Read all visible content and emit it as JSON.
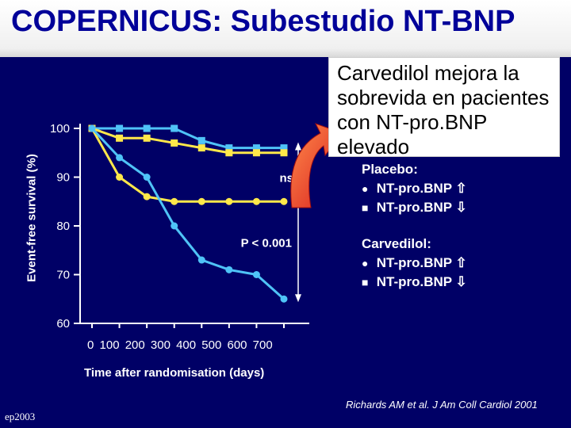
{
  "header": {
    "title": "COPERNICUS: Subestudio NT-BNP"
  },
  "callout": {
    "text": "Carvedilol mejora la sobrevida en pacientes con NT-pro.BNP elevado"
  },
  "chart_data": {
    "type": "line",
    "ylabel": "Event-free survival (%)",
    "xlabel": "Time after randomisation (days)",
    "x_tick_text": "0   100  200  300  400  500  600  700",
    "y_ticks": [
      "100",
      "90",
      "80",
      "70",
      "60"
    ],
    "ylim": [
      60,
      100
    ],
    "annotations": {
      "ns": "ns",
      "p_value": "P < 0.001"
    },
    "series": [
      {
        "group": "Carvedilol",
        "marker": "square",
        "color": "#4fc3f7",
        "x": [
          0,
          100,
          200,
          300,
          400,
          500,
          600,
          700
        ],
        "y": [
          100,
          100,
          100,
          100,
          97.5,
          96,
          96,
          96
        ]
      },
      {
        "group": "Carvedilol",
        "marker": "square",
        "color": "#ffe84a",
        "x": [
          0,
          100,
          200,
          300,
          400,
          500,
          600,
          700
        ],
        "y": [
          100,
          98,
          98,
          97,
          96,
          95,
          95,
          95
        ]
      },
      {
        "group": "Placebo",
        "marker": "circle",
        "color": "#ffe84a",
        "x": [
          0,
          100,
          200,
          300,
          400,
          500,
          600,
          700
        ],
        "y": [
          100,
          90,
          86,
          85,
          85,
          85,
          85,
          85
        ]
      },
      {
        "group": "Placebo",
        "marker": "circle",
        "color": "#4fc3f7",
        "x": [
          0,
          100,
          200,
          300,
          400,
          500,
          600,
          700
        ],
        "y": [
          100,
          94,
          90,
          80,
          73,
          71,
          70,
          65
        ]
      }
    ]
  },
  "legend": {
    "placebo": {
      "title": "Placebo:",
      "items": [
        "NT-pro.BNP ⇧",
        "NT-pro.BNP ⇩"
      ]
    },
    "carvedilol": {
      "title": "Carvedilol:",
      "items": [
        "NT-pro.BNP ⇧",
        "NT-pro.BNP ⇩"
      ]
    }
  },
  "reference": "Richards AM et al. J Am Coll Cardiol 2001",
  "footer": "ep2003"
}
